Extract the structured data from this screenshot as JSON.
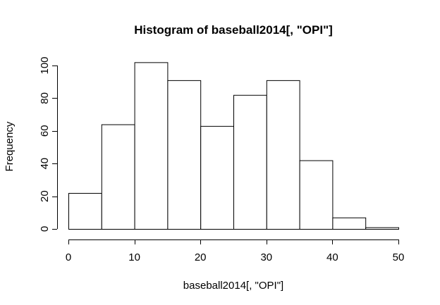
{
  "chart_data": {
    "type": "bar",
    "title": "Histogram of baseball2014[, \"OPI\"]",
    "xlabel": "baseball2014[, \"OPI\"]",
    "ylabel": "Frequency",
    "bins": [
      {
        "start": 0,
        "end": 5,
        "value": 22
      },
      {
        "start": 5,
        "end": 10,
        "value": 64
      },
      {
        "start": 10,
        "end": 15,
        "value": 102
      },
      {
        "start": 15,
        "end": 20,
        "value": 91
      },
      {
        "start": 20,
        "end": 25,
        "value": 63
      },
      {
        "start": 25,
        "end": 30,
        "value": 82
      },
      {
        "start": 30,
        "end": 35,
        "value": 91
      },
      {
        "start": 35,
        "end": 40,
        "value": 42
      },
      {
        "start": 40,
        "end": 45,
        "value": 7
      },
      {
        "start": 45,
        "end": 50,
        "value": 1
      }
    ],
    "xlim": [
      0,
      50
    ],
    "ylim": [
      0,
      100
    ],
    "x_ticks": [
      "0",
      "10",
      "20",
      "30",
      "40",
      "50"
    ],
    "y_ticks": [
      "0",
      "20",
      "40",
      "60",
      "80",
      "100"
    ],
    "grid": false,
    "legend": "none"
  }
}
